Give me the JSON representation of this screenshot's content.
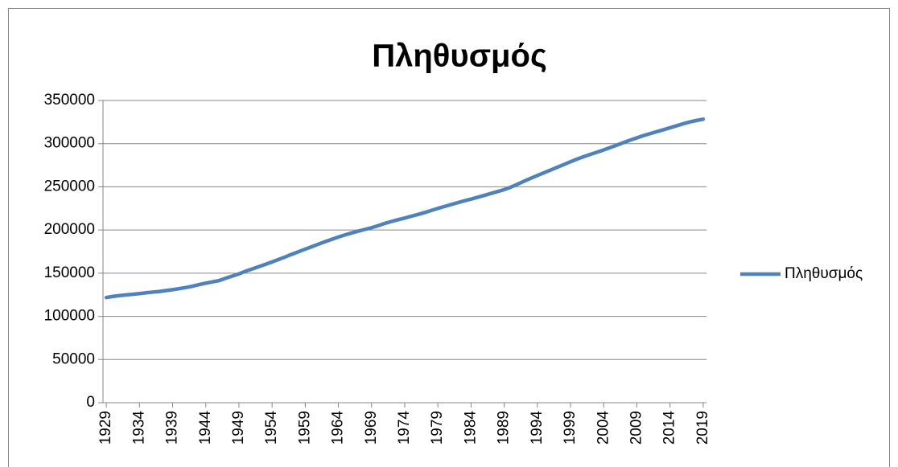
{
  "chart_data": {
    "type": "line",
    "title": "Πληθυσμός",
    "x": [
      1929,
      1930,
      1931,
      1932,
      1933,
      1934,
      1935,
      1936,
      1937,
      1938,
      1939,
      1940,
      1941,
      1942,
      1943,
      1944,
      1945,
      1946,
      1947,
      1948,
      1949,
      1950,
      1951,
      1952,
      1953,
      1954,
      1955,
      1956,
      1957,
      1958,
      1959,
      1960,
      1961,
      1962,
      1963,
      1964,
      1965,
      1966,
      1967,
      1968,
      1969,
      1970,
      1971,
      1972,
      1973,
      1974,
      1975,
      1976,
      1977,
      1978,
      1979,
      1980,
      1981,
      1982,
      1983,
      1984,
      1985,
      1986,
      1987,
      1988,
      1989,
      1990,
      1991,
      1992,
      1993,
      1994,
      1995,
      1996,
      1997,
      1998,
      1999,
      2000,
      2001,
      2002,
      2003,
      2004,
      2005,
      2006,
      2007,
      2008,
      2009,
      2010,
      2011,
      2012,
      2013,
      2014,
      2015,
      2016,
      2017,
      2018,
      2019
    ],
    "series": [
      {
        "name": "Πληθυσμός",
        "color": "#4f81bd",
        "values": [
          121767,
          123077,
          124040,
          124840,
          125579,
          126374,
          127250,
          128053,
          128825,
          129825,
          130880,
          132122,
          133402,
          134860,
          136739,
          138397,
          139928,
          141389,
          144126,
          146631,
          149188,
          152271,
          154878,
          157553,
          160184,
          163026,
          165931,
          168903,
          171984,
          174882,
          177830,
          180671,
          183691,
          186538,
          189242,
          191889,
          194303,
          196560,
          198712,
          200706,
          202677,
          205052,
          207661,
          209896,
          211909,
          213854,
          215973,
          218035,
          220239,
          222585,
          225055,
          227225,
          229466,
          231664,
          233792,
          235825,
          237924,
          240133,
          242289,
          244499,
          246819,
          249623,
          252981,
          256514,
          259919,
          263126,
          266278,
          269394,
          272647,
          275854,
          279040,
          282162,
          284969,
          287625,
          290108,
          292805,
          295517,
          298380,
          301231,
          304094,
          306772,
          309327,
          311583,
          313878,
          316060,
          318386,
          320739,
          323072,
          325122,
          326838,
          328330
        ]
      }
    ],
    "xlim": [
      1928.5,
      2019.5
    ],
    "xticks": [
      1929,
      1934,
      1939,
      1944,
      1949,
      1954,
      1959,
      1964,
      1969,
      1974,
      1979,
      1984,
      1989,
      1994,
      1999,
      2004,
      2009,
      2014,
      2019
    ],
    "ylim": [
      0,
      350000
    ],
    "yticks": [
      0,
      50000,
      100000,
      150000,
      200000,
      250000,
      300000,
      350000
    ],
    "grid": true,
    "legend": "right"
  }
}
